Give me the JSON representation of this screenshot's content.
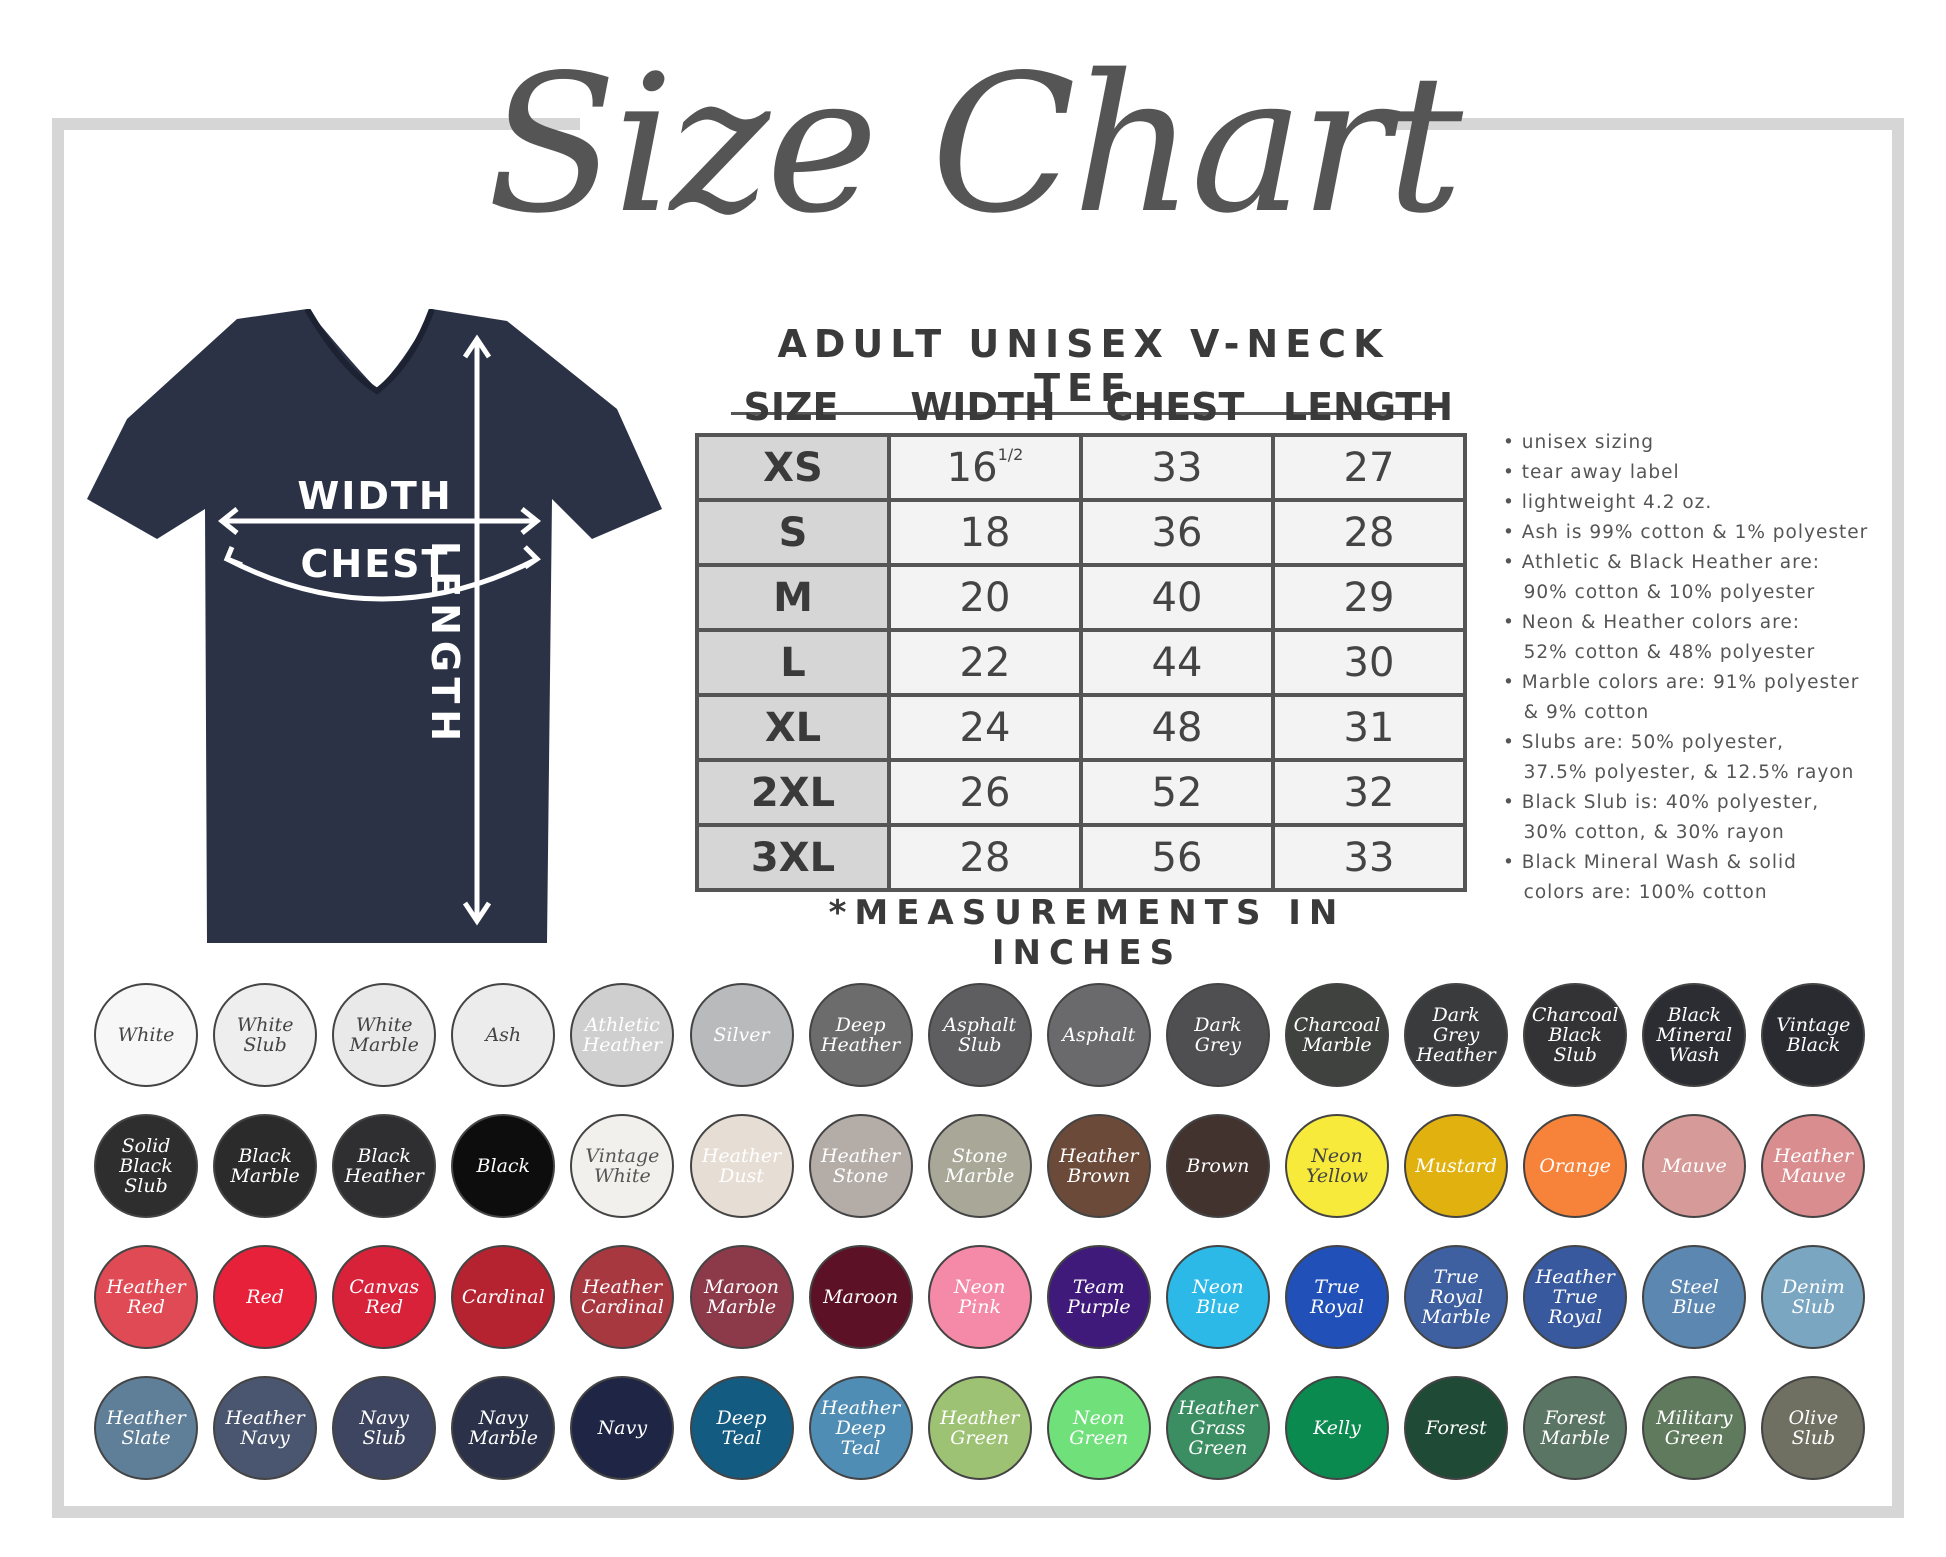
{
  "title": "Size Chart",
  "shirt": {
    "color": "#2b3245",
    "labels": {
      "width": "WIDTH",
      "chest": "CHEST",
      "length": "LENGTH"
    }
  },
  "table": {
    "title": "ADULT UNISEX V-NECK TEE",
    "headers": [
      "SIZE",
      "WIDTH",
      "CHEST",
      "LENGTH"
    ],
    "rows": [
      {
        "size": "XS",
        "width": "16",
        "width_fraction": "1/2",
        "chest": "33",
        "length": "27"
      },
      {
        "size": "S",
        "width": "18",
        "chest": "36",
        "length": "28"
      },
      {
        "size": "M",
        "width": "20",
        "chest": "40",
        "length": "29"
      },
      {
        "size": "L",
        "width": "22",
        "chest": "44",
        "length": "30"
      },
      {
        "size": "XL",
        "width": "24",
        "chest": "48",
        "length": "31"
      },
      {
        "size": "2XL",
        "width": "26",
        "chest": "52",
        "length": "32"
      },
      {
        "size": "3XL",
        "width": "28",
        "chest": "56",
        "length": "33"
      }
    ],
    "footnote": "*MEASUREMENTS IN INCHES"
  },
  "notes": [
    "• unisex sizing",
    "• tear away label",
    "• lightweight 4.2 oz.",
    "• Ash is 99% cotton & 1% polyester",
    "• Athletic & Black Heather are:",
    "   90% cotton & 10% polyester",
    "• Neon & Heather colors are:",
    "   52% cotton & 48% polyester",
    "• Marble colors are: 91% polyester",
    "   & 9% cotton",
    "• Slubs are: 50% polyester,",
    "   37.5% polyester, & 12.5% rayon",
    "• Black Slub is: 40% polyester,",
    "   30% cotton, & 30% rayon",
    "• Black Mineral Wash & solid",
    "   colors are: 100% cotton"
  ],
  "colors": [
    [
      {
        "name": "White",
        "hex": "#f7f7f7",
        "text": "#444"
      },
      {
        "name": "White Slub",
        "hex": "#eeeeee",
        "text": "#444"
      },
      {
        "name": "White Marble",
        "hex": "#e9e9e9",
        "text": "#444"
      },
      {
        "name": "Ash",
        "hex": "#ececec",
        "text": "#444"
      },
      {
        "name": "Athletic Heather",
        "hex": "#cfcfcf",
        "text": "#fff"
      },
      {
        "name": "Silver",
        "hex": "#b9babc",
        "text": "#fff"
      },
      {
        "name": "Deep Heather",
        "hex": "#6c6c6c",
        "text": "#fff"
      },
      {
        "name": "Asphalt Slub",
        "hex": "#5e5e60",
        "text": "#fff"
      },
      {
        "name": "Asphalt",
        "hex": "#6a6a6c",
        "text": "#fff"
      },
      {
        "name": "Dark Grey",
        "hex": "#4f4f51",
        "text": "#fff"
      },
      {
        "name": "Charcoal Marble",
        "hex": "#3f423f",
        "text": "#fff"
      },
      {
        "name": "Dark Grey Heather",
        "hex": "#3a3b3d",
        "text": "#fff"
      },
      {
        "name": "Charcoal Black Slub",
        "hex": "#333335",
        "text": "#fff"
      },
      {
        "name": "Black Mineral Wash",
        "hex": "#2c2d33",
        "text": "#fff"
      },
      {
        "name": "Vintage Black",
        "hex": "#2a2b31",
        "text": "#fff"
      }
    ],
    [
      {
        "name": "Solid Black Slub",
        "hex": "#2e2e2e",
        "text": "#fff"
      },
      {
        "name": "Black Marble",
        "hex": "#2b2b2b",
        "text": "#fff"
      },
      {
        "name": "Black Heather",
        "hex": "#2f2f31",
        "text": "#fff"
      },
      {
        "name": "Black",
        "hex": "#0d0d0d",
        "text": "#fff"
      },
      {
        "name": "Vintage White",
        "hex": "#f2f0ec",
        "text": "#555"
      },
      {
        "name": "Heather Dust",
        "hex": "#e6ddd4",
        "text": "#fff"
      },
      {
        "name": "Heather Stone",
        "hex": "#b3aca7",
        "text": "#fff"
      },
      {
        "name": "Stone Marble",
        "hex": "#a9a797",
        "text": "#fff"
      },
      {
        "name": "Heather Brown",
        "hex": "#6b4a3a",
        "text": "#fff"
      },
      {
        "name": "Brown",
        "hex": "#43332f",
        "text": "#fff"
      },
      {
        "name": "Neon Yellow",
        "hex": "#f7ea3a",
        "text": "#444"
      },
      {
        "name": "Mustard",
        "hex": "#e1b20f",
        "text": "#fff"
      },
      {
        "name": "Orange",
        "hex": "#f7833a",
        "text": "#fff"
      },
      {
        "name": "Mauve",
        "hex": "#d69a98",
        "text": "#fff"
      },
      {
        "name": "Heather Mauve",
        "hex": "#d98d8f",
        "text": "#fff"
      }
    ],
    [
      {
        "name": "Heather Red",
        "hex": "#e04a54",
        "text": "#fff"
      },
      {
        "name": "Red",
        "hex": "#e8213a",
        "text": "#fff"
      },
      {
        "name": "Canvas Red",
        "hex": "#d7223a",
        "text": "#fff"
      },
      {
        "name": "Cardinal",
        "hex": "#b52331",
        "text": "#fff"
      },
      {
        "name": "Heather Cardinal",
        "hex": "#a83840",
        "text": "#fff"
      },
      {
        "name": "Maroon Marble",
        "hex": "#8c3a4a",
        "text": "#fff"
      },
      {
        "name": "Maroon",
        "hex": "#5d1126",
        "text": "#fff"
      },
      {
        "name": "Neon Pink",
        "hex": "#f48aa7",
        "text": "#fff"
      },
      {
        "name": "Team Purple",
        "hex": "#3f1a7a",
        "text": "#fff"
      },
      {
        "name": "Neon Blue",
        "hex": "#2cb9e8",
        "text": "#fff"
      },
      {
        "name": "True Royal",
        "hex": "#2150b8",
        "text": "#fff"
      },
      {
        "name": "True Royal Marble",
        "hex": "#3e5fa0",
        "text": "#fff"
      },
      {
        "name": "Heather True Royal",
        "hex": "#38599e",
        "text": "#fff"
      },
      {
        "name": "Steel Blue",
        "hex": "#5b87b0",
        "text": "#fff"
      },
      {
        "name": "Denim Slub",
        "hex": "#7aa6c2",
        "text": "#fff"
      }
    ],
    [
      {
        "name": "Heather Slate",
        "hex": "#5f7f99",
        "text": "#fff"
      },
      {
        "name": "Heather Navy",
        "hex": "#4a5670",
        "text": "#fff"
      },
      {
        "name": "Navy Slub",
        "hex": "#3e4560",
        "text": "#fff"
      },
      {
        "name": "Navy Marble",
        "hex": "#2b3148",
        "text": "#fff"
      },
      {
        "name": "Navy",
        "hex": "#1f2645",
        "text": "#fff"
      },
      {
        "name": "Deep Teal",
        "hex": "#135b80",
        "text": "#fff"
      },
      {
        "name": "Heather Deep Teal",
        "hex": "#4f8db5",
        "text": "#fff"
      },
      {
        "name": "Heather Green",
        "hex": "#9dc273",
        "text": "#fff"
      },
      {
        "name": "Neon Green",
        "hex": "#6fe07a",
        "text": "#fff"
      },
      {
        "name": "Heather Grass Green",
        "hex": "#3a8e62",
        "text": "#fff"
      },
      {
        "name": "Kelly",
        "hex": "#0b8a50",
        "text": "#fff"
      },
      {
        "name": "Forest",
        "hex": "#1e4a36",
        "text": "#fff"
      },
      {
        "name": "Forest Marble",
        "hex": "#5b7564",
        "text": "#fff"
      },
      {
        "name": "Military Green",
        "hex": "#5f7a5c",
        "text": "#fff"
      },
      {
        "name": "Olive Slub",
        "hex": "#6f7062",
        "text": "#fff"
      }
    ]
  ]
}
